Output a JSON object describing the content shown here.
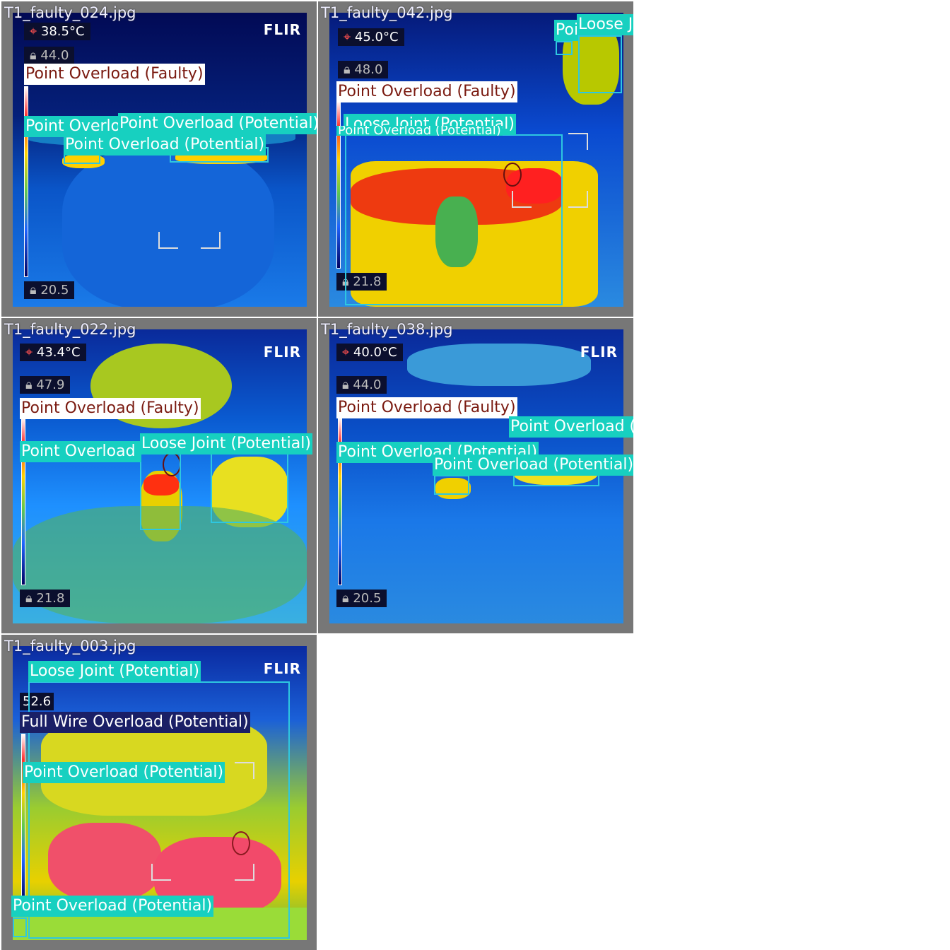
{
  "tiles": [
    {
      "filename": "T1_faulty_024.jpg",
      "spot_temp": "38.5°C",
      "max_temp": "44.0",
      "min_temp": "20.5",
      "logo": "FLIR",
      "labels": [
        {
          "text": "Point Overload (Faulty)",
          "kind": "faulty"
        },
        {
          "text": "Point Overload (Potential)",
          "kind": "potential"
        },
        {
          "text": "Point Overload (Potential)",
          "kind": "potential"
        },
        {
          "text": "Point Overload (Potential)",
          "kind": "potential"
        }
      ]
    },
    {
      "filename": "T1_faulty_042.jpg",
      "spot_temp": "45.0°C",
      "max_temp": "48.0",
      "min_temp": "21.8",
      "labels": [
        {
          "text": "Point Overload (Faulty)",
          "kind": "faulty"
        },
        {
          "text": "Loose Joint (Potential)",
          "kind": "potential"
        },
        {
          "text": "Point Overload (Potential)",
          "kind": "potential"
        },
        {
          "text": "Loose Joint (Potential)",
          "kind": "potential"
        },
        {
          "text": "Point Overload (Potential)",
          "kind": "potential"
        }
      ]
    },
    {
      "filename": "T1_faulty_022.jpg",
      "spot_temp": "43.4°C",
      "max_temp": "47.9",
      "min_temp": "21.8",
      "logo": "FLIR",
      "labels": [
        {
          "text": "Point Overload (Faulty)",
          "kind": "faulty"
        },
        {
          "text": "Point Overload (Potential)",
          "kind": "potential"
        },
        {
          "text": "Loose Joint (Potential)",
          "kind": "potential"
        }
      ]
    },
    {
      "filename": "T1_faulty_038.jpg",
      "spot_temp": "40.0°C",
      "max_temp": "44.0",
      "min_temp": "20.5",
      "logo": "FLIR",
      "labels": [
        {
          "text": "Point Overload (Faulty)",
          "kind": "faulty"
        },
        {
          "text": "Point Overload (Potential)",
          "kind": "potential"
        },
        {
          "text": "Point Overload (Potential)",
          "kind": "potential"
        },
        {
          "text": "Point Overload (Potential)",
          "kind": "potential"
        }
      ]
    },
    {
      "filename": "T1_faulty_003.jpg",
      "max_temp": "52.6",
      "logo": "FLIR",
      "labels": [
        {
          "text": "Loose Joint (Potential)",
          "kind": "potential"
        },
        {
          "text": "Full Wire Overload (Potential)",
          "kind": "wire"
        },
        {
          "text": "Point Overload (Potential)",
          "kind": "potential"
        },
        {
          "text": "Point Overload (Potential)",
          "kind": "potential"
        }
      ]
    }
  ],
  "colors": {
    "potential_label_bg": "#17d0c0",
    "faulty_label_bg": "#ffffff",
    "faulty_label_text": "#7a1a10",
    "wire_label_bg": "#1a1f66",
    "box_border": "#2ec7e0",
    "tile_frame": "#777777"
  }
}
